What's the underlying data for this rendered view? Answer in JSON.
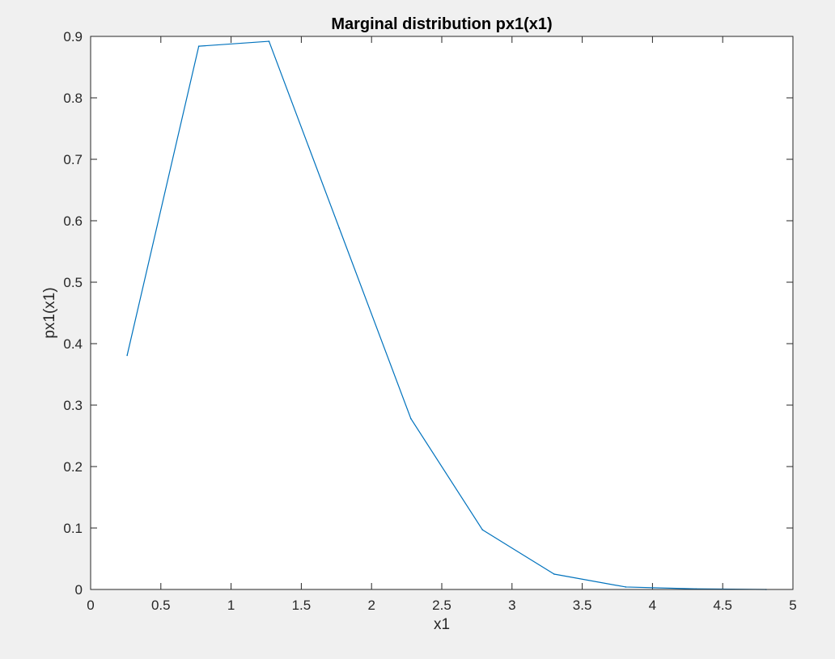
{
  "chart_data": {
    "type": "line",
    "title": "Marginal distribution px1(x1)",
    "xlabel": "x1",
    "ylabel": "px1(x1)",
    "xlim": [
      0,
      5
    ],
    "ylim": [
      0,
      0.9
    ],
    "xticks": [
      "0",
      "0.5",
      "1",
      "1.5",
      "2",
      "2.5",
      "3",
      "3.5",
      "4",
      "4.5",
      "5"
    ],
    "yticks": [
      "0",
      "0.1",
      "0.2",
      "0.3",
      "0.4",
      "0.5",
      "0.6",
      "0.7",
      "0.8",
      "0.9"
    ],
    "grid": false,
    "line_color": "#0072bd",
    "series": [
      {
        "x": [
          0.26,
          0.77,
          1.27,
          1.77,
          2.28,
          2.79,
          3.3,
          3.81,
          4.31,
          4.81
        ],
        "y": [
          0.381,
          0.884,
          0.892,
          0.588,
          0.278,
          0.097,
          0.025,
          0.004,
          0.001,
          0.0
        ]
      }
    ]
  }
}
